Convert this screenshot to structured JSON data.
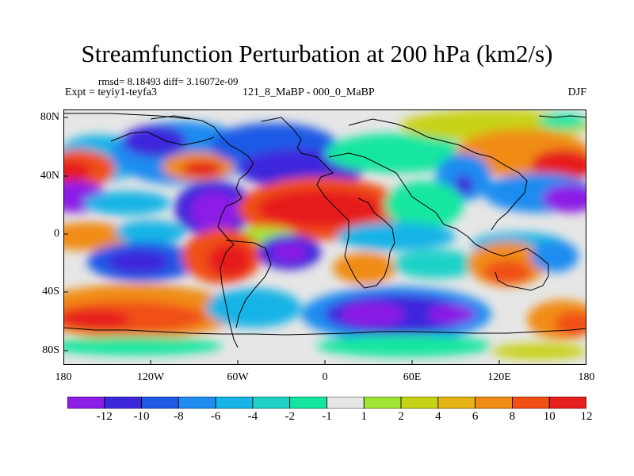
{
  "title": "Streamfunction Perturbation at 200 hPa (km2/s)",
  "stats_line": "rmsd= 8.18493 diff= 3.16072e-09",
  "experiment": "Expt = teyiy1-teyfa3",
  "center_label": "121_8_MaBP - 000_0_MaBP",
  "season": "DJF",
  "lat_labels": [
    "80N",
    "40N",
    "0",
    "40S",
    "80S"
  ],
  "lon_labels": [
    "180",
    "120W",
    "60W",
    "0",
    "60E",
    "120E",
    "180"
  ],
  "colorbar": {
    "colors": [
      "#8c1ee6",
      "#3c28dc",
      "#1e5ae6",
      "#1e8cf0",
      "#14b4e6",
      "#1ed2c8",
      "#14e6a0",
      "#e6e6e6",
      "#a0e632",
      "#c8d214",
      "#e6b414",
      "#f08c14",
      "#f05014",
      "#e61e1e"
    ],
    "tick_labels": [
      "-12",
      "-10",
      "-8",
      "-6",
      "-4",
      "-2",
      "-1",
      "1",
      "2",
      "4",
      "6",
      "8",
      "10",
      "12"
    ]
  }
}
